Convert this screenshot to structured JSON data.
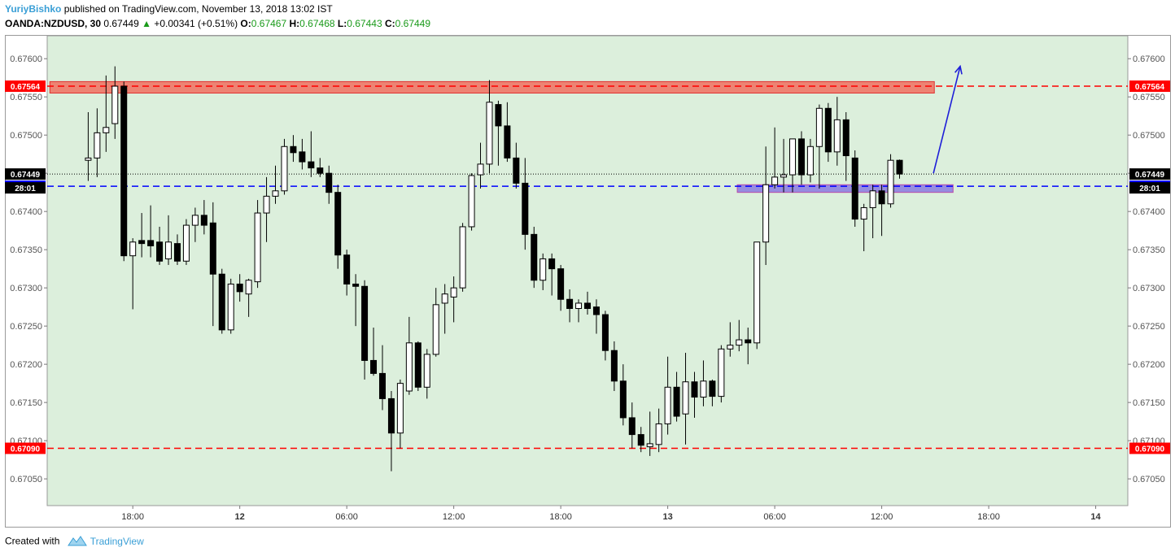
{
  "header": {
    "author": "YuriyBishko",
    "published_text": "published on TradingView.com, November 13, 2018 13:02 IST",
    "symbol": "OANDA:NZDUSD, 30",
    "last": "0.67449",
    "change": "+0.00341 (+0.51%)",
    "open_label": "O:",
    "open": "0.67467",
    "high_label": "H:",
    "high": "0.67468",
    "low_label": "L:",
    "low": "0.67443",
    "close_label": "C:",
    "close": "0.67449"
  },
  "footer": {
    "created_with": "Created with",
    "brand": "TradingView"
  },
  "chart_data": {
    "type": "candlestick",
    "ylim": [
      0.67015,
      0.6763
    ],
    "y_ticks": [
      0.6705,
      0.671,
      0.6715,
      0.672,
      0.6725,
      0.673,
      0.6735,
      0.674,
      0.6745,
      0.675,
      0.6755,
      0.676
    ],
    "y_tick_labels": [
      "0.67050",
      "0.67100",
      "0.67150",
      "0.67200",
      "0.67250",
      "0.67300",
      "0.67350",
      "0.67400",
      "0.67450",
      "0.67500",
      "0.67550",
      "0.67600"
    ],
    "x_ticks": [
      {
        "label": "18:00",
        "t": 5
      },
      {
        "label": "12",
        "t": 17
      },
      {
        "label": "06:00",
        "t": 29
      },
      {
        "label": "12:00",
        "t": 41
      },
      {
        "label": "18:00",
        "t": 53
      },
      {
        "label": "13",
        "t": 65
      },
      {
        "label": "06:00",
        "t": 77
      },
      {
        "label": "12:00",
        "t": 89
      },
      {
        "label": "18:00",
        "t": 101
      },
      {
        "label": "14",
        "t": 113
      }
    ],
    "t_range": [
      -4.6,
      116.6
    ],
    "candles": [
      {
        "t": 0,
        "o": 0.67467,
        "h": 0.6753,
        "l": 0.6744,
        "c": 0.6747
      },
      {
        "t": 1,
        "o": 0.6747,
        "h": 0.67535,
        "l": 0.67445,
        "c": 0.67503
      },
      {
        "t": 2,
        "o": 0.67503,
        "h": 0.67578,
        "l": 0.67478,
        "c": 0.6751
      },
      {
        "t": 3,
        "o": 0.67515,
        "h": 0.6759,
        "l": 0.67495,
        "c": 0.67564
      },
      {
        "t": 4,
        "o": 0.67564,
        "h": 0.6757,
        "l": 0.67335,
        "c": 0.67342
      },
      {
        "t": 5,
        "o": 0.67342,
        "h": 0.67365,
        "l": 0.67272,
        "c": 0.6736
      },
      {
        "t": 6,
        "o": 0.67362,
        "h": 0.67398,
        "l": 0.6734,
        "c": 0.67358
      },
      {
        "t": 7,
        "o": 0.67362,
        "h": 0.67408,
        "l": 0.6734,
        "c": 0.67355
      },
      {
        "t": 8,
        "o": 0.6736,
        "h": 0.6738,
        "l": 0.6733,
        "c": 0.67335
      },
      {
        "t": 9,
        "o": 0.67338,
        "h": 0.67395,
        "l": 0.6733,
        "c": 0.6736
      },
      {
        "t": 10,
        "o": 0.67358,
        "h": 0.6737,
        "l": 0.6733,
        "c": 0.67335
      },
      {
        "t": 11,
        "o": 0.67335,
        "h": 0.6739,
        "l": 0.6733,
        "c": 0.67382
      },
      {
        "t": 12,
        "o": 0.67382,
        "h": 0.67405,
        "l": 0.6736,
        "c": 0.67395
      },
      {
        "t": 13,
        "o": 0.67395,
        "h": 0.67415,
        "l": 0.6737,
        "c": 0.67382
      },
      {
        "t": 14,
        "o": 0.67385,
        "h": 0.67412,
        "l": 0.6725,
        "c": 0.67318
      },
      {
        "t": 15,
        "o": 0.67318,
        "h": 0.67325,
        "l": 0.6724,
        "c": 0.67245
      },
      {
        "t": 16,
        "o": 0.67245,
        "h": 0.67312,
        "l": 0.6724,
        "c": 0.67305
      },
      {
        "t": 17,
        "o": 0.67305,
        "h": 0.67318,
        "l": 0.67282,
        "c": 0.67295
      },
      {
        "t": 18,
        "o": 0.67292,
        "h": 0.67312,
        "l": 0.67262,
        "c": 0.6731
      },
      {
        "t": 19,
        "o": 0.67308,
        "h": 0.67415,
        "l": 0.673,
        "c": 0.67398
      },
      {
        "t": 20,
        "o": 0.67398,
        "h": 0.67445,
        "l": 0.6736,
        "c": 0.6742
      },
      {
        "t": 21,
        "o": 0.6742,
        "h": 0.6746,
        "l": 0.6741,
        "c": 0.67427
      },
      {
        "t": 22,
        "o": 0.67427,
        "h": 0.67495,
        "l": 0.67422,
        "c": 0.67485
      },
      {
        "t": 23,
        "o": 0.67485,
        "h": 0.675,
        "l": 0.67465,
        "c": 0.67477
      },
      {
        "t": 24,
        "o": 0.67478,
        "h": 0.67495,
        "l": 0.67455,
        "c": 0.67465
      },
      {
        "t": 25,
        "o": 0.67465,
        "h": 0.67505,
        "l": 0.67445,
        "c": 0.67457
      },
      {
        "t": 26,
        "o": 0.67457,
        "h": 0.6747,
        "l": 0.67445,
        "c": 0.6745
      },
      {
        "t": 27,
        "o": 0.6745,
        "h": 0.6746,
        "l": 0.6741,
        "c": 0.67425
      },
      {
        "t": 28,
        "o": 0.67425,
        "h": 0.67435,
        "l": 0.67325,
        "c": 0.67343
      },
      {
        "t": 29,
        "o": 0.67343,
        "h": 0.6735,
        "l": 0.6729,
        "c": 0.67305
      },
      {
        "t": 30,
        "o": 0.67305,
        "h": 0.67318,
        "l": 0.6725,
        "c": 0.67302
      },
      {
        "t": 31,
        "o": 0.67302,
        "h": 0.6731,
        "l": 0.6718,
        "c": 0.67205
      },
      {
        "t": 32,
        "o": 0.67205,
        "h": 0.67248,
        "l": 0.67185,
        "c": 0.67188
      },
      {
        "t": 33,
        "o": 0.67188,
        "h": 0.67225,
        "l": 0.6714,
        "c": 0.67155
      },
      {
        "t": 34,
        "o": 0.67155,
        "h": 0.67165,
        "l": 0.6706,
        "c": 0.6711
      },
      {
        "t": 35,
        "o": 0.6711,
        "h": 0.6718,
        "l": 0.6709,
        "c": 0.67175
      },
      {
        "t": 36,
        "o": 0.67165,
        "h": 0.67262,
        "l": 0.6716,
        "c": 0.67228
      },
      {
        "t": 37,
        "o": 0.67228,
        "h": 0.6723,
        "l": 0.67165,
        "c": 0.6717
      },
      {
        "t": 38,
        "o": 0.6717,
        "h": 0.6722,
        "l": 0.67155,
        "c": 0.67213
      },
      {
        "t": 39,
        "o": 0.67213,
        "h": 0.673,
        "l": 0.6721,
        "c": 0.67278
      },
      {
        "t": 40,
        "o": 0.6728,
        "h": 0.67305,
        "l": 0.6724,
        "c": 0.67292
      },
      {
        "t": 41,
        "o": 0.67288,
        "h": 0.67315,
        "l": 0.67255,
        "c": 0.673
      },
      {
        "t": 42,
        "o": 0.673,
        "h": 0.67385,
        "l": 0.67295,
        "c": 0.6738
      },
      {
        "t": 43,
        "o": 0.6738,
        "h": 0.6745,
        "l": 0.67375,
        "c": 0.67447
      },
      {
        "t": 44,
        "o": 0.67448,
        "h": 0.6749,
        "l": 0.6743,
        "c": 0.67462
      },
      {
        "t": 45,
        "o": 0.67462,
        "h": 0.67572,
        "l": 0.6745,
        "c": 0.67543
      },
      {
        "t": 46,
        "o": 0.6754,
        "h": 0.67545,
        "l": 0.6746,
        "c": 0.67512
      },
      {
        "t": 47,
        "o": 0.67512,
        "h": 0.67543,
        "l": 0.67465,
        "c": 0.6747
      },
      {
        "t": 48,
        "o": 0.6747,
        "h": 0.6749,
        "l": 0.6743,
        "c": 0.67437
      },
      {
        "t": 49,
        "o": 0.67437,
        "h": 0.6747,
        "l": 0.6735,
        "c": 0.6737
      },
      {
        "t": 50,
        "o": 0.6737,
        "h": 0.6738,
        "l": 0.673,
        "c": 0.6731
      },
      {
        "t": 51,
        "o": 0.6731,
        "h": 0.67345,
        "l": 0.67297,
        "c": 0.67338
      },
      {
        "t": 52,
        "o": 0.67338,
        "h": 0.67345,
        "l": 0.6729,
        "c": 0.67325
      },
      {
        "t": 53,
        "o": 0.67325,
        "h": 0.6733,
        "l": 0.6727,
        "c": 0.67285
      },
      {
        "t": 54,
        "o": 0.67285,
        "h": 0.67298,
        "l": 0.67255,
        "c": 0.67273
      },
      {
        "t": 55,
        "o": 0.67273,
        "h": 0.67285,
        "l": 0.67255,
        "c": 0.6728
      },
      {
        "t": 56,
        "o": 0.6728,
        "h": 0.67295,
        "l": 0.67265,
        "c": 0.67273
      },
      {
        "t": 57,
        "o": 0.67275,
        "h": 0.67285,
        "l": 0.6724,
        "c": 0.67265
      },
      {
        "t": 58,
        "o": 0.67265,
        "h": 0.6727,
        "l": 0.67205,
        "c": 0.67218
      },
      {
        "t": 59,
        "o": 0.67218,
        "h": 0.6723,
        "l": 0.67165,
        "c": 0.67178
      },
      {
        "t": 60,
        "o": 0.67178,
        "h": 0.672,
        "l": 0.6712,
        "c": 0.6713
      },
      {
        "t": 61,
        "o": 0.6713,
        "h": 0.6715,
        "l": 0.6709,
        "c": 0.67108
      },
      {
        "t": 62,
        "o": 0.67108,
        "h": 0.67118,
        "l": 0.67085,
        "c": 0.67094
      },
      {
        "t": 63,
        "o": 0.67092,
        "h": 0.67138,
        "l": 0.6708,
        "c": 0.67096
      },
      {
        "t": 64,
        "o": 0.67095,
        "h": 0.67142,
        "l": 0.67085,
        "c": 0.67122
      },
      {
        "t": 65,
        "o": 0.67122,
        "h": 0.6721,
        "l": 0.67108,
        "c": 0.6717
      },
      {
        "t": 66,
        "o": 0.6717,
        "h": 0.6719,
        "l": 0.67125,
        "c": 0.67132
      },
      {
        "t": 67,
        "o": 0.67135,
        "h": 0.67215,
        "l": 0.67095,
        "c": 0.67177
      },
      {
        "t": 68,
        "o": 0.67177,
        "h": 0.6719,
        "l": 0.6713,
        "c": 0.67157
      },
      {
        "t": 69,
        "o": 0.67157,
        "h": 0.67205,
        "l": 0.67145,
        "c": 0.67178
      },
      {
        "t": 70,
        "o": 0.67178,
        "h": 0.6718,
        "l": 0.67145,
        "c": 0.67158
      },
      {
        "t": 71,
        "o": 0.67158,
        "h": 0.67225,
        "l": 0.6715,
        "c": 0.6722
      },
      {
        "t": 72,
        "o": 0.6722,
        "h": 0.67255,
        "l": 0.6721,
        "c": 0.67225
      },
      {
        "t": 73,
        "o": 0.67225,
        "h": 0.67258,
        "l": 0.67217,
        "c": 0.67232
      },
      {
        "t": 74,
        "o": 0.67232,
        "h": 0.67248,
        "l": 0.672,
        "c": 0.67228
      },
      {
        "t": 75,
        "o": 0.67228,
        "h": 0.6736,
        "l": 0.6722,
        "c": 0.6736
      },
      {
        "t": 76,
        "o": 0.6736,
        "h": 0.67485,
        "l": 0.6733,
        "c": 0.67435
      },
      {
        "t": 77,
        "o": 0.67435,
        "h": 0.6751,
        "l": 0.6743,
        "c": 0.67445
      },
      {
        "t": 78,
        "o": 0.67445,
        "h": 0.67495,
        "l": 0.67425,
        "c": 0.67448
      },
      {
        "t": 79,
        "o": 0.67448,
        "h": 0.67495,
        "l": 0.67425,
        "c": 0.67495
      },
      {
        "t": 80,
        "o": 0.67495,
        "h": 0.67505,
        "l": 0.67435,
        "c": 0.67448
      },
      {
        "t": 81,
        "o": 0.67448,
        "h": 0.67495,
        "l": 0.67438,
        "c": 0.67485
      },
      {
        "t": 82,
        "o": 0.67485,
        "h": 0.6754,
        "l": 0.6743,
        "c": 0.67535
      },
      {
        "t": 83,
        "o": 0.67535,
        "h": 0.67542,
        "l": 0.67465,
        "c": 0.67478
      },
      {
        "t": 84,
        "o": 0.67478,
        "h": 0.6755,
        "l": 0.6746,
        "c": 0.6752
      },
      {
        "t": 85,
        "o": 0.6752,
        "h": 0.6753,
        "l": 0.6744,
        "c": 0.67473
      },
      {
        "t": 86,
        "o": 0.6747,
        "h": 0.6748,
        "l": 0.6738,
        "c": 0.6739
      },
      {
        "t": 87,
        "o": 0.6739,
        "h": 0.6741,
        "l": 0.67348,
        "c": 0.67405
      },
      {
        "t": 88,
        "o": 0.67405,
        "h": 0.67435,
        "l": 0.67365,
        "c": 0.67427
      },
      {
        "t": 89,
        "o": 0.67427,
        "h": 0.67435,
        "l": 0.67368,
        "c": 0.6741
      },
      {
        "t": 90,
        "o": 0.6741,
        "h": 0.67475,
        "l": 0.67405,
        "c": 0.67467
      },
      {
        "t": 91,
        "o": 0.67467,
        "h": 0.67468,
        "l": 0.67443,
        "c": 0.67449
      }
    ],
    "levels": [
      {
        "price": 0.67564,
        "label": "0.67564",
        "color": "#ff0000"
      },
      {
        "price": 0.67433,
        "label": "0.67433",
        "color": "#0000ff"
      },
      {
        "price": 0.6709,
        "label": "0.67090",
        "color": "#ff0000"
      }
    ],
    "last_price": {
      "price": 0.67449,
      "label": "0.67449",
      "countdown": "28:01"
    },
    "zones": [
      {
        "t0": -4.3,
        "t1": 94.9,
        "y0": 0.67555,
        "y1": 0.6757,
        "fill": "#f07060",
        "stroke": "#e03030"
      },
      {
        "t0": 72.8,
        "t1": 97.0,
        "y0": 0.67425,
        "y1": 0.67435,
        "fill": "#8a7ae0",
        "stroke": "#b84aa8"
      }
    ],
    "arrow": {
      "t0": 94.8,
      "y0": 0.6745,
      "t1": 97.8,
      "y1": 0.6759,
      "color": "#1e1ed8"
    },
    "colors": {
      "background": "#dcefdc",
      "bull": "#ffffff",
      "bear": "#000000",
      "wick": "#000000"
    }
  }
}
